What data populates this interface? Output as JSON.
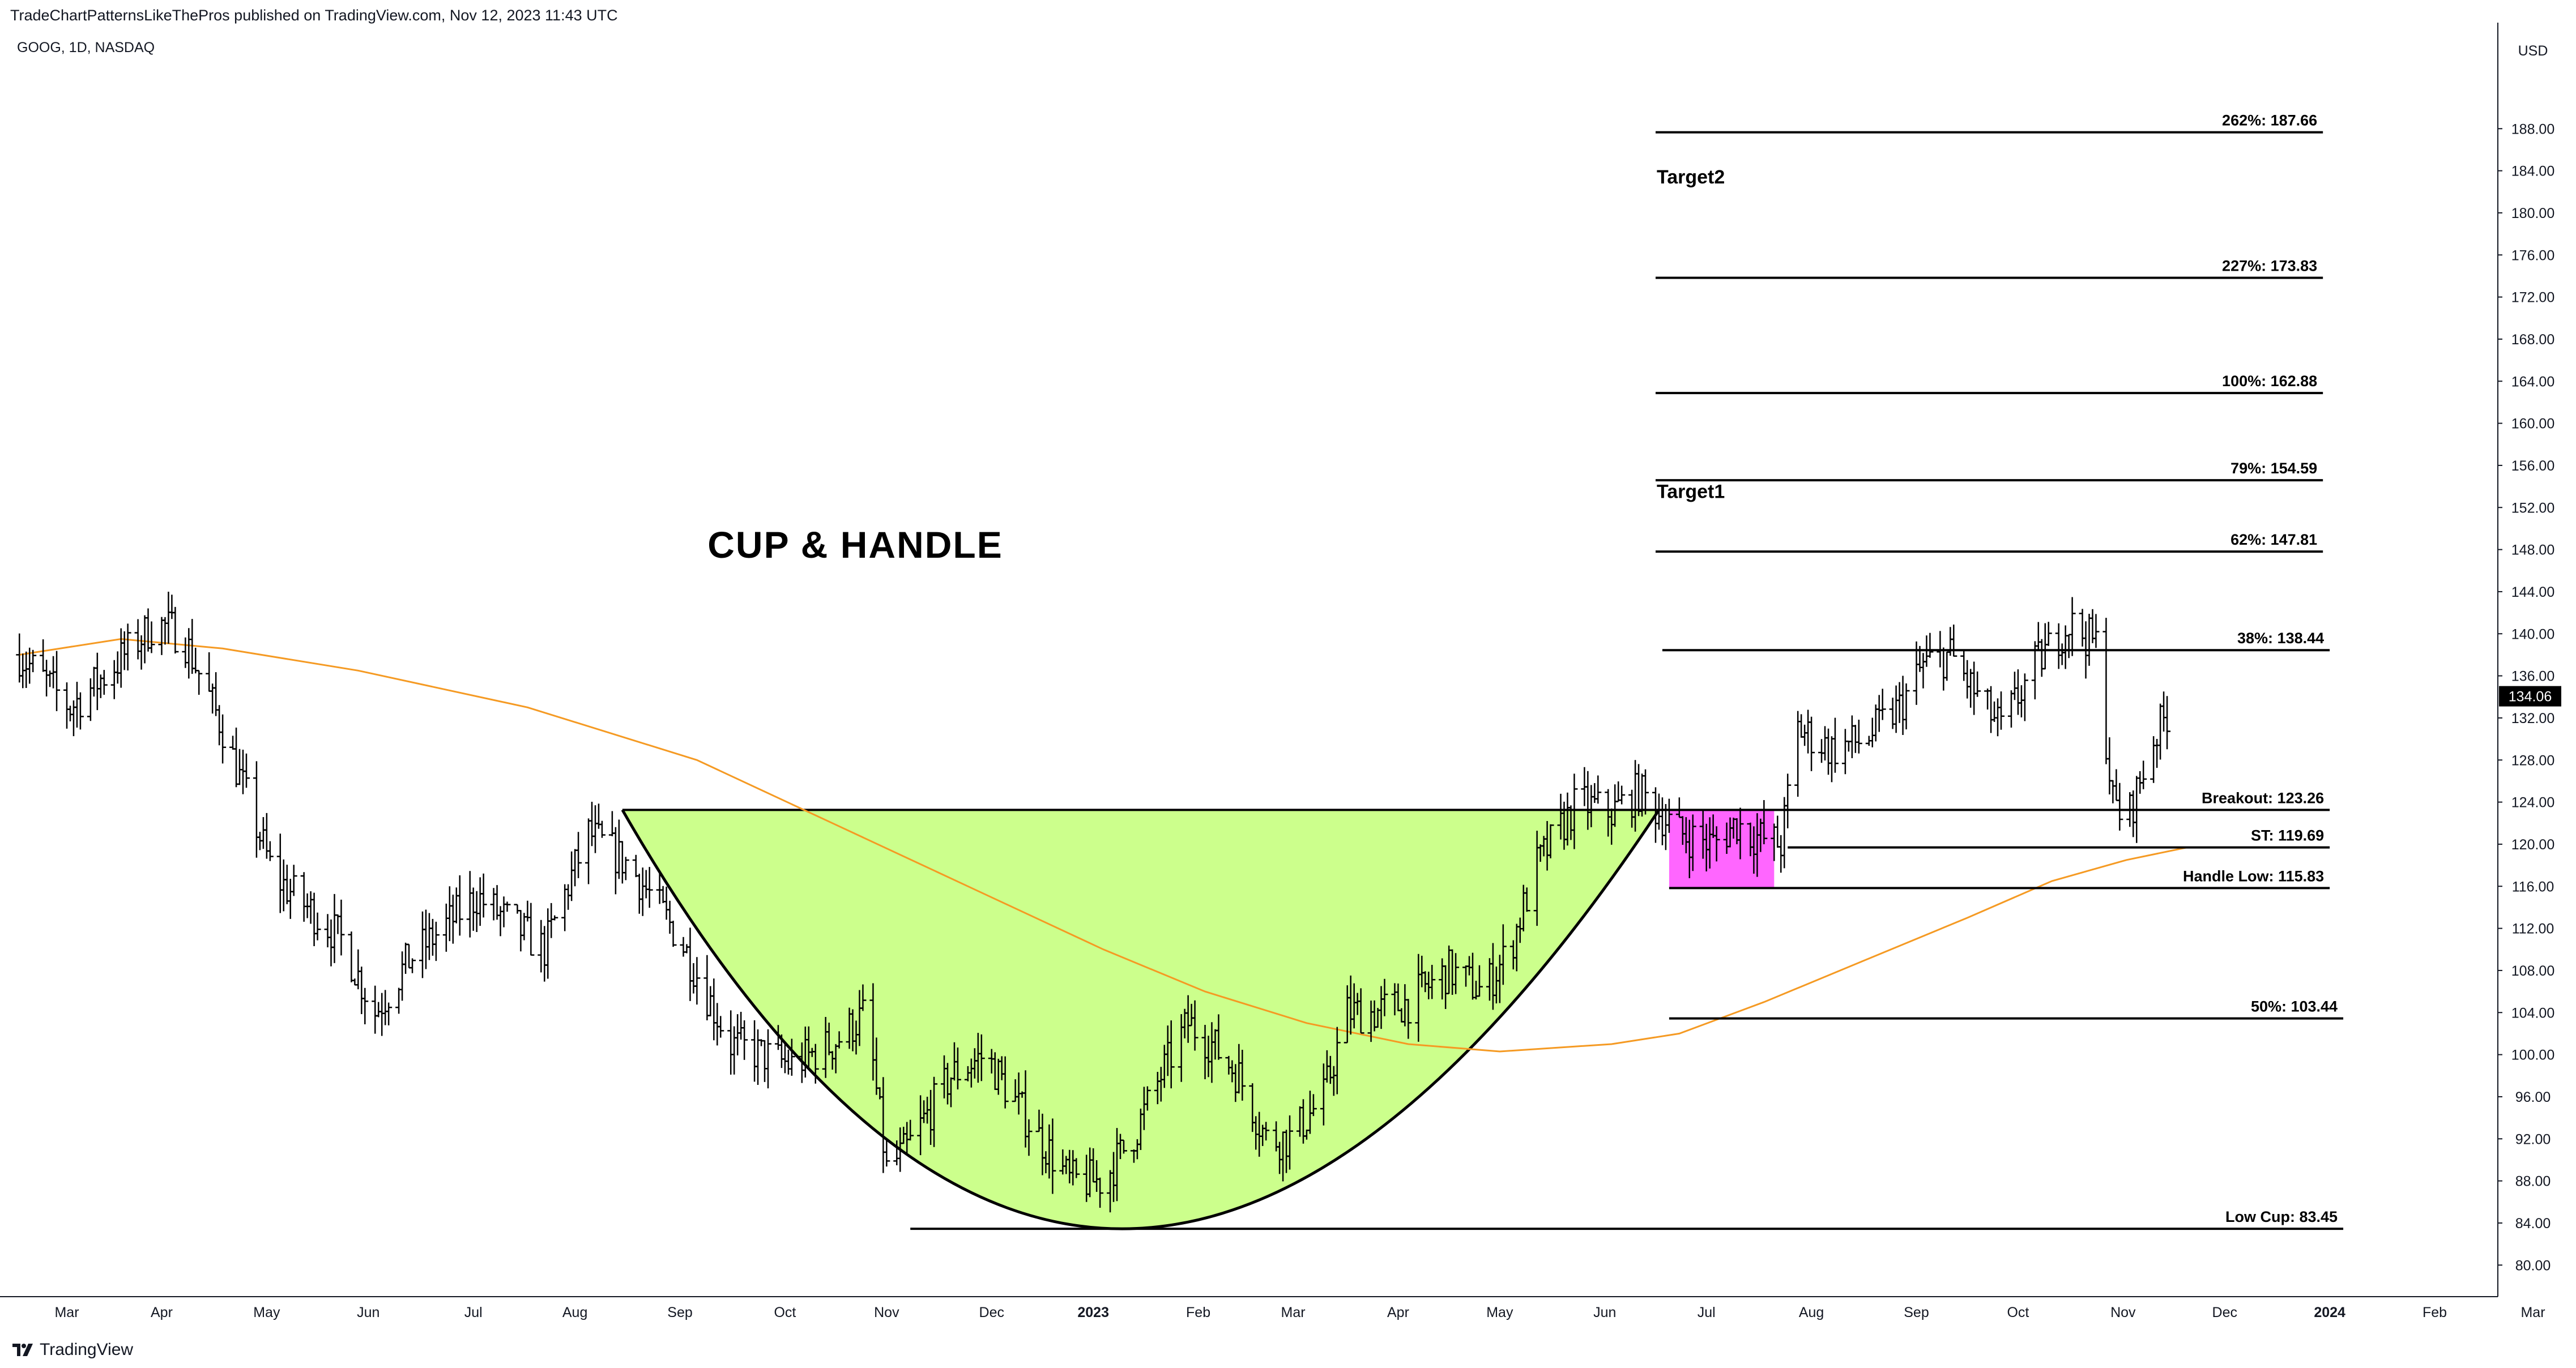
{
  "header": {
    "published": "TradeChartPatternsLikeThePros published on TradingView.com, Nov 12, 2023 11:43 UTC",
    "symbol": "GOOG, 1D, NASDAQ"
  },
  "footer": {
    "brand": "TradingView",
    "logo_icon": "tradingview-logo-icon"
  },
  "chart_data": {
    "type": "ohlc-bar",
    "title": "CUP & HANDLE",
    "currency_label": "USD",
    "last_price": "134.06",
    "last_price_value": 134.06,
    "ylim": [
      77,
      197
    ],
    "y_ticks": [
      80,
      84,
      88,
      92,
      96,
      100,
      104,
      108,
      112,
      116,
      120,
      124,
      128,
      132,
      136,
      140,
      144,
      148,
      152,
      156,
      160,
      164,
      168,
      172,
      176,
      180,
      184,
      188
    ],
    "x_ticks": [
      {
        "label": "Mar",
        "bold": false
      },
      {
        "label": "Apr",
        "bold": false
      },
      {
        "label": "May",
        "bold": false
      },
      {
        "label": "Jun",
        "bold": false
      },
      {
        "label": "Jul",
        "bold": false
      },
      {
        "label": "Aug",
        "bold": false
      },
      {
        "label": "Sep",
        "bold": false
      },
      {
        "label": "Oct",
        "bold": false
      },
      {
        "label": "Nov",
        "bold": false
      },
      {
        "label": "Dec",
        "bold": false
      },
      {
        "label": "2023",
        "bold": true
      },
      {
        "label": "Feb",
        "bold": false
      },
      {
        "label": "Mar",
        "bold": false
      },
      {
        "label": "Apr",
        "bold": false
      },
      {
        "label": "May",
        "bold": false
      },
      {
        "label": "Jun",
        "bold": false
      },
      {
        "label": "Jul",
        "bold": false
      },
      {
        "label": "Aug",
        "bold": false
      },
      {
        "label": "Sep",
        "bold": false
      },
      {
        "label": "Oct",
        "bold": false
      },
      {
        "label": "Nov",
        "bold": false
      },
      {
        "label": "Dec",
        "bold": false
      },
      {
        "label": "2024",
        "bold": true
      },
      {
        "label": "Feb",
        "bold": false
      },
      {
        "label": "Mar",
        "bold": false
      }
    ],
    "tick_days": [
      14,
      42,
      73,
      103,
      134,
      164,
      195,
      226,
      256,
      287,
      317,
      348,
      376,
      407,
      437,
      468,
      498,
      529,
      560,
      590,
      621,
      651,
      682,
      713,
      742
    ],
    "price_anchors": [
      [
        0,
        138
      ],
      [
        15,
        133
      ],
      [
        25,
        136
      ],
      [
        40,
        141
      ],
      [
        48,
        140
      ],
      [
        60,
        131
      ],
      [
        75,
        117
      ],
      [
        95,
        111
      ],
      [
        105,
        104
      ],
      [
        115,
        109
      ],
      [
        135,
        115
      ],
      [
        155,
        110
      ],
      [
        163,
        117
      ],
      [
        168,
        121
      ],
      [
        180,
        118
      ],
      [
        195,
        111
      ],
      [
        210,
        101
      ],
      [
        228,
        99
      ],
      [
        240,
        101
      ],
      [
        250,
        104
      ],
      [
        256,
        89
      ],
      [
        262,
        91
      ],
      [
        275,
        98
      ],
      [
        285,
        100
      ],
      [
        295,
        95
      ],
      [
        310,
        88
      ],
      [
        320,
        88
      ],
      [
        330,
        93
      ],
      [
        337,
        98
      ],
      [
        345,
        103
      ],
      [
        352,
        101
      ],
      [
        360,
        98
      ],
      [
        368,
        92
      ],
      [
        375,
        92
      ],
      [
        385,
        96
      ],
      [
        392,
        104
      ],
      [
        400,
        104
      ],
      [
        410,
        105
      ],
      [
        422,
        108
      ],
      [
        432,
        106
      ],
      [
        440,
        110
      ],
      [
        448,
        118
      ],
      [
        460,
        124
      ],
      [
        470,
        123
      ],
      [
        478,
        125
      ],
      [
        484,
        123
      ],
      [
        490,
        121
      ],
      [
        500,
        120
      ],
      [
        507,
        122
      ],
      [
        510,
        121
      ],
      [
        520,
        120
      ],
      [
        525,
        131
      ],
      [
        535,
        129
      ],
      [
        545,
        130
      ],
      [
        555,
        133
      ],
      [
        562,
        137
      ],
      [
        570,
        138
      ],
      [
        578,
        134
      ],
      [
        585,
        131
      ],
      [
        595,
        137
      ],
      [
        605,
        141
      ],
      [
        613,
        139
      ],
      [
        618,
        124
      ],
      [
        622,
        122
      ],
      [
        630,
        130
      ],
      [
        635,
        133
      ]
    ],
    "moving_average": {
      "color": "#f59a23",
      "points": [
        [
          0,
          138
        ],
        [
          30,
          139.5
        ],
        [
          60,
          138.6
        ],
        [
          100,
          136.5
        ],
        [
          150,
          133
        ],
        [
          200,
          128
        ],
        [
          240,
          122
        ],
        [
          280,
          116
        ],
        [
          320,
          110
        ],
        [
          350,
          106
        ],
        [
          380,
          103
        ],
        [
          410,
          101
        ],
        [
          437,
          100.3
        ],
        [
          470,
          101
        ],
        [
          490,
          102
        ],
        [
          515,
          105
        ],
        [
          545,
          109
        ],
        [
          575,
          113
        ],
        [
          600,
          116.5
        ],
        [
          622,
          118.5
        ],
        [
          640,
          119.7
        ]
      ]
    },
    "cup": {
      "rim_start_day": 178,
      "rim_end_day": 484,
      "rim_price": 123.26,
      "bottom_day": 320,
      "bottom_price": 83.45,
      "fill": "#ccff8c"
    },
    "handle_box": {
      "start_day": 487,
      "end_day": 518,
      "top": 123.26,
      "bottom": 115.83,
      "fill": "#ff66ff"
    },
    "levels": [
      {
        "label": "262%: 187.66",
        "value": 187.66,
        "start_day": 483,
        "end_day": 680
      },
      {
        "label": "227%: 173.83",
        "value": 173.83,
        "start_day": 483,
        "end_day": 680
      },
      {
        "label": "100%: 162.88",
        "value": 162.88,
        "start_day": 483,
        "end_day": 680
      },
      {
        "label": "79%: 154.59",
        "value": 154.59,
        "start_day": 483,
        "end_day": 680
      },
      {
        "label": "62%: 147.81",
        "value": 147.81,
        "start_day": 483,
        "end_day": 680
      },
      {
        "label": "38%: 138.44",
        "value": 138.44,
        "start_day": 485,
        "end_day": 682
      },
      {
        "label": "Breakout: 123.26",
        "value": 123.26,
        "start_day": 484,
        "end_day": 682
      },
      {
        "label": "ST: 119.69",
        "value": 119.69,
        "start_day": 522,
        "end_day": 682
      },
      {
        "label": "Handle Low: 115.83",
        "value": 115.83,
        "start_day": 487,
        "end_day": 682
      },
      {
        "label": "50%: 103.44",
        "value": 103.44,
        "start_day": 487,
        "end_day": 686
      },
      {
        "label": "Low Cup: 83.45",
        "value": 83.45,
        "start_day": 263,
        "end_day": 686
      }
    ],
    "targets": [
      {
        "label": "Target2",
        "price": 182.8,
        "day": 483
      },
      {
        "label": "Target1",
        "price": 152.9,
        "day": 483
      }
    ]
  }
}
